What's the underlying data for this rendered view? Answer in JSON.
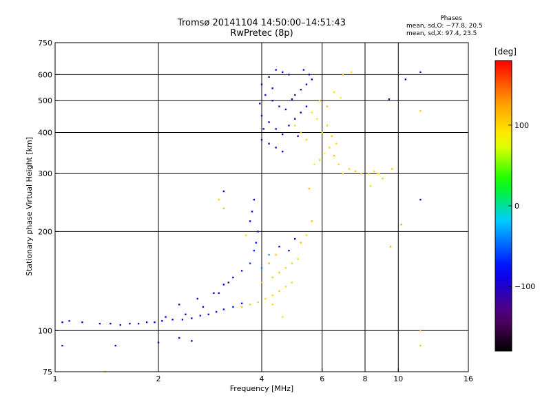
{
  "header": {
    "title": "Tromsø 20141104 14:50:00–14:51:43",
    "subtitle": "RwPretec (8p)"
  },
  "phase_stats": {
    "title": "Phases",
    "line_o": "mean, sd,O: −77.8, 20.5",
    "line_x": "mean, sd,X:  97.4, 23.5"
  },
  "colorbar": {
    "unit": "[deg]",
    "ticks": [
      {
        "label": "100",
        "value": 100
      },
      {
        "label": "0",
        "value": 0
      },
      {
        "label": "−100",
        "value": -100
      }
    ],
    "range": [
      -180,
      180
    ]
  },
  "chart_data": {
    "type": "scatter",
    "title": "Tromsø 20141104 14:50:00–14:51:43",
    "subtitle": "RwPretec (8p)",
    "xlabel": "Frequency [MHz]",
    "ylabel": "Stationary phase Virtual Height [km]",
    "x_scale": "log",
    "y_scale": "log",
    "xlim": [
      1,
      16
    ],
    "ylim": [
      75,
      750
    ],
    "x_ticks": [
      {
        "label": "1",
        "value": 1
      },
      {
        "label": "2",
        "value": 2
      },
      {
        "label": "4",
        "value": 4
      },
      {
        "label": "6",
        "value": 6
      },
      {
        "label": "8",
        "value": 8
      },
      {
        "label": "10",
        "value": 10
      },
      {
        "label": "16",
        "value": 16
      }
    ],
    "y_ticks": [
      {
        "label": "750",
        "value": 750
      },
      {
        "label": "600",
        "value": 600
      },
      {
        "label": "500",
        "value": 500
      },
      {
        "label": "400",
        "value": 400
      },
      {
        "label": "300",
        "value": 300
      },
      {
        "label": "200",
        "value": 200
      },
      {
        "label": "100",
        "value": 100
      },
      {
        "label": "75",
        "value": 75
      }
    ],
    "grid_x": [
      1,
      2,
      4,
      6,
      8,
      10,
      16
    ],
    "grid_y": [
      100,
      200,
      300,
      400,
      500,
      600,
      750
    ],
    "grid": true,
    "color_variable": "phase [deg]",
    "series": [
      {
        "name": "O",
        "points": [
          [
            1.05,
            106,
            -80
          ],
          [
            1.1,
            107,
            -70
          ],
          [
            1.2,
            106,
            -90
          ],
          [
            1.35,
            105,
            -110
          ],
          [
            1.45,
            105,
            -105
          ],
          [
            1.55,
            104,
            -100
          ],
          [
            1.65,
            105,
            -110
          ],
          [
            1.75,
            105,
            -100
          ],
          [
            1.85,
            106,
            -95
          ],
          [
            1.95,
            106,
            -90
          ],
          [
            2.05,
            107,
            -90
          ],
          [
            2.2,
            108,
            -85
          ],
          [
            2.35,
            108,
            -80
          ],
          [
            2.5,
            109,
            -75
          ],
          [
            2.65,
            111,
            -70
          ],
          [
            2.8,
            112,
            -80
          ],
          [
            2.95,
            114,
            -75
          ],
          [
            3.1,
            116,
            -70
          ],
          [
            3.3,
            118,
            -75
          ],
          [
            3.5,
            121,
            -80
          ],
          [
            2.3,
            120,
            -95
          ],
          [
            2.6,
            125,
            -90
          ],
          [
            2.9,
            130,
            -80
          ],
          [
            3.1,
            138,
            -85
          ],
          [
            3.3,
            145,
            -80
          ],
          [
            3.5,
            152,
            -70
          ],
          [
            3.7,
            160,
            -60
          ],
          [
            3.8,
            175,
            -70
          ],
          [
            3.85,
            185,
            -80
          ],
          [
            3.9,
            200,
            -75
          ],
          [
            3.7,
            215,
            -85
          ],
          [
            3.75,
            230,
            -90
          ],
          [
            3.8,
            250,
            -80
          ],
          [
            3.1,
            265,
            -100
          ],
          [
            4.0,
            155,
            -40
          ],
          [
            4.2,
            170,
            -30
          ],
          [
            4.5,
            180,
            -90
          ],
          [
            4.8,
            175,
            -100
          ],
          [
            5.0,
            190,
            -80
          ],
          [
            3.2,
            140,
            -120
          ],
          [
            3.0,
            130,
            -110
          ],
          [
            2.7,
            118,
            -100
          ],
          [
            2.4,
            112,
            -95
          ],
          [
            2.1,
            110,
            -90
          ],
          [
            4.0,
            560,
            -105
          ],
          [
            4.2,
            590,
            -110
          ],
          [
            4.4,
            620,
            -100
          ],
          [
            4.6,
            610,
            -90
          ],
          [
            4.8,
            600,
            -120
          ],
          [
            4.1,
            520,
            -100
          ],
          [
            4.3,
            500,
            -95
          ],
          [
            4.5,
            480,
            -105
          ],
          [
            4.7,
            470,
            -110
          ],
          [
            4.0,
            450,
            -100
          ],
          [
            4.2,
            430,
            -90
          ],
          [
            4.4,
            410,
            -100
          ],
          [
            4.6,
            395,
            -95
          ],
          [
            4.0,
            380,
            -110
          ],
          [
            4.2,
            370,
            -105
          ],
          [
            4.4,
            360,
            -100
          ],
          [
            4.6,
            350,
            -90
          ],
          [
            4.8,
            420,
            -100
          ],
          [
            5.0,
            440,
            -95
          ],
          [
            5.2,
            460,
            -100
          ],
          [
            5.4,
            480,
            -90
          ],
          [
            5.0,
            520,
            -110
          ],
          [
            5.2,
            540,
            -100
          ],
          [
            5.4,
            560,
            -95
          ],
          [
            5.6,
            580,
            -100
          ],
          [
            5.3,
            620,
            -105
          ],
          [
            5.5,
            600,
            -95
          ],
          [
            3.95,
            490,
            -100
          ],
          [
            4.05,
            410,
            -85
          ],
          [
            4.3,
            545,
            -95
          ],
          [
            4.9,
            505,
            -100
          ],
          [
            5.1,
            390,
            -110
          ],
          [
            1.5,
            90,
            -100
          ],
          [
            2.0,
            92,
            -110
          ],
          [
            2.3,
            95,
            -90
          ],
          [
            2.5,
            93,
            -100
          ],
          [
            11.6,
            610,
            -95
          ],
          [
            11.6,
            250,
            -100
          ],
          [
            9.4,
            505,
            -120
          ],
          [
            10.5,
            580,
            -110
          ],
          [
            1.05,
            90,
            -100
          ]
        ]
      },
      {
        "name": "X",
        "points": [
          [
            3.5,
            118,
            110
          ],
          [
            3.7,
            120,
            105
          ],
          [
            3.9,
            122,
            100
          ],
          [
            4.1,
            125,
            95
          ],
          [
            4.3,
            128,
            100
          ],
          [
            4.5,
            132,
            105
          ],
          [
            4.7,
            136,
            100
          ],
          [
            4.9,
            140,
            95
          ],
          [
            4.3,
            145,
            105
          ],
          [
            4.5,
            150,
            110
          ],
          [
            4.7,
            155,
            100
          ],
          [
            4.9,
            160,
            105
          ],
          [
            5.1,
            165,
            100
          ],
          [
            4.0,
            140,
            120
          ],
          [
            4.2,
            160,
            115
          ],
          [
            4.4,
            170,
            110
          ],
          [
            5.2,
            185,
            110
          ],
          [
            5.4,
            195,
            100
          ],
          [
            5.6,
            215,
            110
          ],
          [
            5.5,
            270,
            115
          ],
          [
            5.7,
            320,
            90
          ],
          [
            5.9,
            330,
            60
          ],
          [
            6.1,
            345,
            80
          ],
          [
            6.3,
            360,
            100
          ],
          [
            6.5,
            340,
            110
          ],
          [
            6.7,
            320,
            95
          ],
          [
            6.9,
            300,
            90
          ],
          [
            7.2,
            310,
            100
          ],
          [
            7.5,
            305,
            110
          ],
          [
            7.8,
            300,
            105
          ],
          [
            8.2,
            300,
            110
          ],
          [
            8.5,
            305,
            100
          ],
          [
            8.8,
            300,
            95
          ],
          [
            6.0,
            400,
            80
          ],
          [
            6.2,
            420,
            100
          ],
          [
            6.4,
            390,
            110
          ],
          [
            6.6,
            370,
            95
          ],
          [
            5.8,
            440,
            70
          ],
          [
            5.6,
            460,
            90
          ],
          [
            5.4,
            380,
            100
          ],
          [
            5.2,
            400,
            110
          ],
          [
            5.0,
            420,
            100
          ],
          [
            5.9,
            500,
            100
          ],
          [
            6.2,
            480,
            110
          ],
          [
            6.5,
            530,
            95
          ],
          [
            6.8,
            510,
            80
          ],
          [
            6.9,
            600,
            110
          ],
          [
            7.3,
            610,
            100
          ],
          [
            8.7,
            300,
            110
          ],
          [
            9.0,
            290,
            100
          ],
          [
            8.3,
            275,
            95
          ],
          [
            9.6,
            310,
            105
          ],
          [
            11.6,
            465,
            100
          ],
          [
            11.6,
            100,
            110
          ],
          [
            11.6,
            90,
            110
          ],
          [
            10.2,
            210,
            120
          ],
          [
            9.5,
            180,
            115
          ],
          [
            3.0,
            250,
            100
          ],
          [
            3.1,
            235,
            110
          ],
          [
            3.6,
            195,
            100
          ],
          [
            4.3,
            120,
            100
          ],
          [
            4.6,
            110,
            95
          ],
          [
            1.4,
            75,
            95
          ]
        ]
      }
    ]
  }
}
